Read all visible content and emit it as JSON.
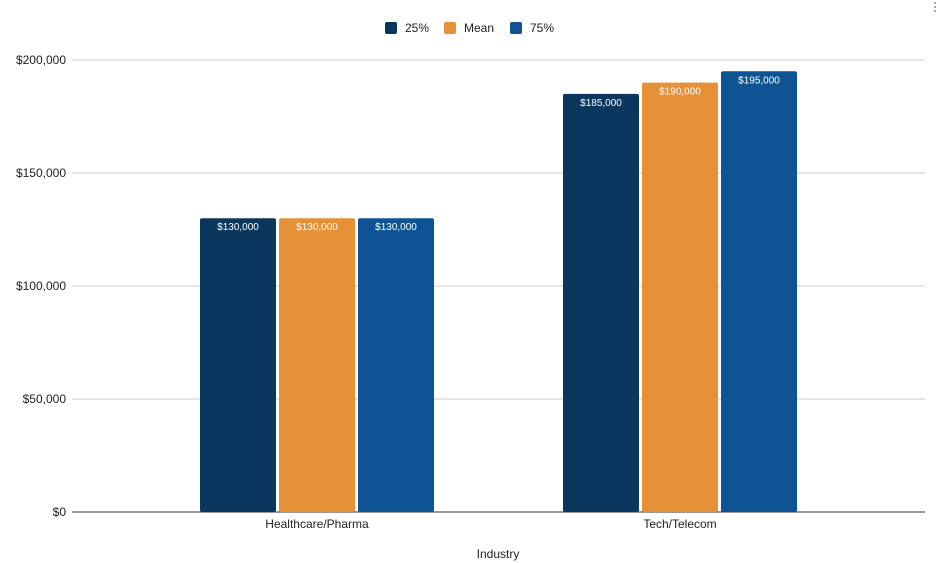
{
  "chart_data": {
    "type": "bar",
    "title": "",
    "xlabel": "Industry",
    "ylabel": "",
    "categories": [
      "Healthcare/Pharma",
      "Tech/Telecom"
    ],
    "series": [
      {
        "name": "25%",
        "color": "#0b365e",
        "values": [
          130000,
          185000
        ]
      },
      {
        "name": "Mean",
        "color": "#e69138",
        "values": [
          130000,
          190000
        ]
      },
      {
        "name": "75%",
        "color": "#0e5394",
        "values": [
          130000,
          195000
        ]
      }
    ],
    "data_labels": [
      [
        "$130,000",
        "$185,000"
      ],
      [
        "$130,000",
        "$190,000"
      ],
      [
        "$130,000",
        "$195,000"
      ]
    ],
    "ylim": [
      0,
      200000
    ],
    "yticks": [
      0,
      50000,
      100000,
      150000,
      200000
    ],
    "ytick_labels": [
      "$0",
      "$50,000",
      "$100,000",
      "$150,000",
      "$200,000"
    ],
    "grid": true,
    "legend_position": "top"
  },
  "menu": {
    "icon": "more-vert-icon"
  }
}
